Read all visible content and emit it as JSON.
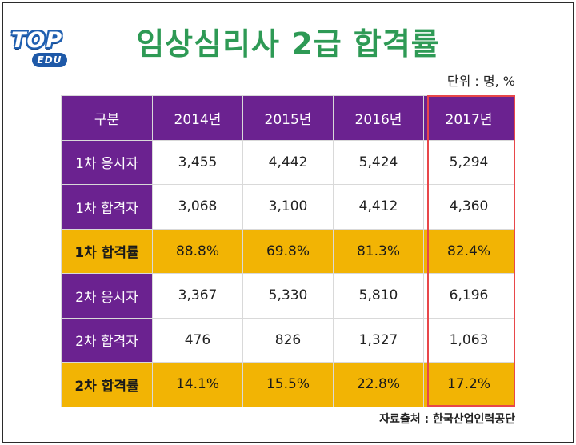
{
  "title": "임상심리사 2급 합격률",
  "unit": "단위 : 명, %",
  "source": "자료출처 : 한국산업인력공단",
  "logo": {
    "top": "TOP",
    "edu": "EDU"
  },
  "colors": {
    "title": "#2e9a55",
    "header": "#6b2290",
    "rate_row": "#f2b404",
    "highlight": "#e8474a"
  },
  "chart_data": {
    "type": "table",
    "columns": [
      "구분",
      "2014년",
      "2015년",
      "2016년",
      "2017년"
    ],
    "rows": [
      {
        "label": "1차 응시자",
        "values": [
          "3,455",
          "4,442",
          "5,424",
          "5,294"
        ]
      },
      {
        "label": "1차 합격자",
        "values": [
          "3,068",
          "3,100",
          "4,412",
          "4,360"
        ]
      },
      {
        "label": "1차 합격률",
        "values": [
          "88.8%",
          "69.8%",
          "81.3%",
          "82.4%"
        ]
      },
      {
        "label": "2차 응시자",
        "values": [
          "3,367",
          "5,330",
          "5,810",
          "6,196"
        ]
      },
      {
        "label": "2차 합격자",
        "values": [
          "476",
          "826",
          "1,327",
          "1,063"
        ]
      },
      {
        "label": "2차 합격률",
        "values": [
          "14.1%",
          "15.5%",
          "22.8%",
          "17.2%"
        ]
      }
    ],
    "highlighted_column": "2017년"
  }
}
